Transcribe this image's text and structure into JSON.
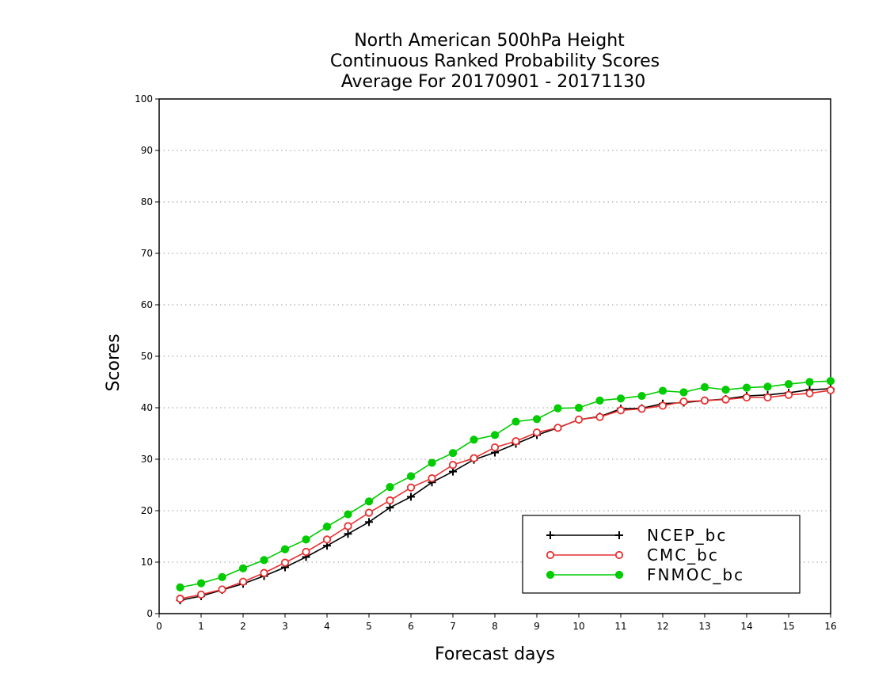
{
  "chart_data": {
    "type": "line",
    "title": [
      "North American 500hPa Height",
      "Continuous Ranked Probability Scores",
      "Average For 20170901 - 20171130"
    ],
    "xlabel": "Forecast days",
    "ylabel": "Scores",
    "xlim": [
      0,
      16
    ],
    "ylim": [
      0,
      100
    ],
    "xticks": [
      "0",
      "1",
      "2",
      "3",
      "4",
      "5",
      "6",
      "7",
      "8",
      "9",
      "10",
      "11",
      "12",
      "13",
      "14",
      "15",
      "16"
    ],
    "yticks": [
      "0",
      "10",
      "20",
      "30",
      "40",
      "50",
      "60",
      "70",
      "80",
      "90",
      "100"
    ],
    "grid": "horizontal dotted",
    "legend_position": "bottom-right",
    "x": [
      0.5,
      1,
      1.5,
      2,
      2.5,
      3,
      3.5,
      4,
      4.5,
      5,
      5.5,
      6,
      6.5,
      7,
      7.5,
      8,
      8.5,
      9,
      9.5,
      10,
      10.5,
      11,
      11.5,
      12,
      12.5,
      13,
      13.5,
      14,
      14.5,
      15,
      15.5,
      16
    ],
    "series": [
      {
        "name": "NCEP_bc",
        "color": "#000000",
        "marker": "plus",
        "values": [
          2.6,
          3.4,
          4.6,
          5.8,
          7.3,
          9.0,
          11.0,
          13.2,
          15.5,
          17.8,
          20.6,
          22.7,
          25.5,
          27.6,
          29.9,
          31.3,
          33.0,
          34.7,
          36.1,
          37.7,
          38.3,
          39.8,
          39.9,
          40.8,
          41.0,
          41.4,
          41.7,
          42.3,
          42.5,
          42.9,
          43.5,
          43.7
        ]
      },
      {
        "name": "CMC_bc",
        "color": "#e83030",
        "marker": "open-circle",
        "values": [
          2.9,
          3.7,
          4.7,
          6.2,
          7.9,
          9.9,
          12.0,
          14.4,
          17.0,
          19.6,
          22.0,
          24.5,
          26.3,
          28.9,
          30.2,
          32.3,
          33.5,
          35.2,
          36.1,
          37.7,
          38.2,
          39.5,
          39.8,
          40.4,
          41.2,
          41.4,
          41.6,
          42.0,
          42.0,
          42.5,
          42.8,
          43.4
        ]
      },
      {
        "name": "FNMOC_bc",
        "color": "#00cc00",
        "marker": "filled-circle",
        "values": [
          5.1,
          5.9,
          7.1,
          8.8,
          10.4,
          12.5,
          14.4,
          16.9,
          19.3,
          21.8,
          24.6,
          26.7,
          29.3,
          31.2,
          33.8,
          34.7,
          37.3,
          37.8,
          39.9,
          40.0,
          41.4,
          41.8,
          42.3,
          43.3,
          43.0,
          44.0,
          43.5,
          43.9,
          44.1,
          44.6,
          45.0,
          45.2
        ]
      }
    ]
  }
}
